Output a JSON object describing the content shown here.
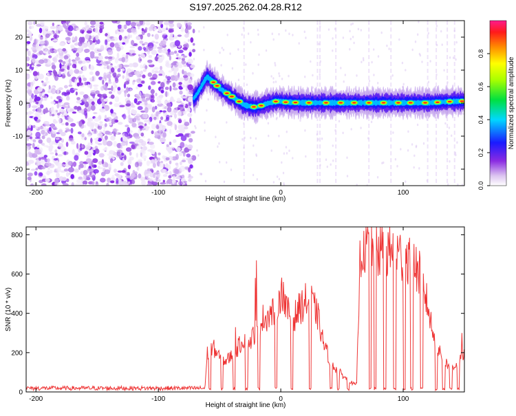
{
  "title": "S197.2025.262.04.28.R12",
  "chart_data": [
    {
      "type": "heatmap",
      "title": "S197.2025.262.04.28.R12",
      "xlabel": "Height of straight line (km)",
      "ylabel": "Frequency (Hz)",
      "xlim": [
        -208,
        150
      ],
      "ylim": [
        -25,
        25
      ],
      "x_ticks": [
        -200,
        -100,
        0,
        100
      ],
      "x_tick_labels": [
        "-200",
        "-100",
        "0",
        "100"
      ],
      "y_ticks": [
        -20,
        -10,
        0,
        10,
        20
      ],
      "y_tick_labels": [
        "-20",
        "-10",
        "0",
        "10",
        "20"
      ],
      "colorbar": {
        "label": "Normalized spectral amplitude",
        "range": [
          0,
          1
        ],
        "ticks": [
          0.0,
          0.2,
          0.4,
          0.6,
          0.8
        ],
        "tick_labels": [
          "0.0",
          "0.2",
          "0.4",
          "0.6",
          "0.8"
        ]
      },
      "noise_region_x": [
        -208,
        -71
      ],
      "ridge": {
        "x": [
          -71,
          -68,
          -65,
          -62,
          -60,
          -57,
          -54,
          -50,
          -46,
          -42,
          -38,
          -34,
          -30,
          -27,
          -24,
          -21,
          -18,
          -14,
          -10,
          -6,
          -3,
          0,
          4,
          10,
          20,
          30,
          40,
          50,
          60,
          70,
          80,
          90,
          100,
          110,
          120,
          130,
          140,
          150
        ],
        "y": [
          1.5,
          3,
          5,
          7,
          8,
          7,
          6,
          4.5,
          3.5,
          2.5,
          1.5,
          0.5,
          -0.5,
          -0.8,
          -1,
          -1.2,
          -1,
          -0.5,
          0,
          0.3,
          0.6,
          0.5,
          0.3,
          0.2,
          0.1,
          0.1,
          0.1,
          0.1,
          0.1,
          0.1,
          0.1,
          0.1,
          0.1,
          0.1,
          0.1,
          0.3,
          0.5,
          0.6
        ]
      },
      "strong_peak_x": [
        -55,
        -52,
        -44,
        -40,
        -34,
        -22,
        -16,
        -4,
        4,
        12,
        23,
        37,
        49,
        60,
        72,
        84,
        96,
        106,
        118,
        128,
        138,
        148
      ]
    },
    {
      "type": "line",
      "xlabel": "Height of straight line (km)",
      "ylabel": "SNR (10 * v/v)",
      "xlim": [
        -208,
        150
      ],
      "ylim": [
        0,
        840
      ],
      "x_ticks": [
        -200,
        -100,
        0,
        100
      ],
      "x_tick_labels": [
        "-200",
        "-100",
        "0",
        "100"
      ],
      "y_ticks": [
        0,
        200,
        400,
        600,
        800
      ],
      "y_tick_labels": [
        "0",
        "200",
        "400",
        "600",
        "800"
      ],
      "line_color": "#ee3333",
      "envelope": {
        "x": [
          -208,
          -150,
          -100,
          -62,
          -60,
          -55,
          -50,
          -45,
          -40,
          -35,
          -30,
          -25,
          -20,
          -15,
          -10,
          -5,
          0,
          5,
          10,
          15,
          20,
          25,
          30,
          35,
          40,
          45,
          50,
          55,
          60,
          62,
          65,
          70,
          75,
          80,
          85,
          90,
          95,
          100,
          105,
          110,
          115,
          120,
          125,
          130,
          135,
          140,
          145,
          150
        ],
        "y": [
          15,
          15,
          15,
          15,
          200,
          230,
          180,
          160,
          190,
          230,
          280,
          260,
          330,
          380,
          400,
          420,
          520,
          420,
          380,
          430,
          470,
          470,
          400,
          250,
          170,
          120,
          90,
          60,
          40,
          40,
          740,
          760,
          740,
          730,
          730,
          740,
          720,
          700,
          700,
          650,
          590,
          450,
          280,
          200,
          150,
          130,
          150,
          200
        ]
      },
      "dropout_x_ranges": [
        [
          -59,
          -57
        ],
        [
          -49,
          -47
        ],
        [
          -39,
          -37
        ],
        [
          -29,
          -27
        ],
        [
          -19,
          -17
        ],
        [
          -5,
          -3
        ],
        [
          8,
          10
        ],
        [
          23,
          25
        ],
        [
          40,
          42
        ],
        [
          46,
          48
        ],
        [
          54,
          56
        ],
        [
          72,
          74
        ],
        [
          76,
          78
        ],
        [
          84,
          86
        ],
        [
          92,
          94
        ],
        [
          100,
          102
        ],
        [
          106,
          108
        ],
        [
          114,
          116
        ],
        [
          126,
          128
        ],
        [
          132,
          134
        ],
        [
          138,
          140
        ],
        [
          144,
          146
        ]
      ],
      "spikes": [
        {
          "x": -37,
          "y": 330
        },
        {
          "x": -21,
          "y": 580
        },
        {
          "x": -20,
          "y": 670
        },
        {
          "x": 2,
          "y": 560
        },
        {
          "x": 68,
          "y": 820
        },
        {
          "x": 74,
          "y": 840
        },
        {
          "x": 80,
          "y": 790
        },
        {
          "x": 88,
          "y": 770
        },
        {
          "x": 148,
          "y": 300
        }
      ]
    }
  ]
}
